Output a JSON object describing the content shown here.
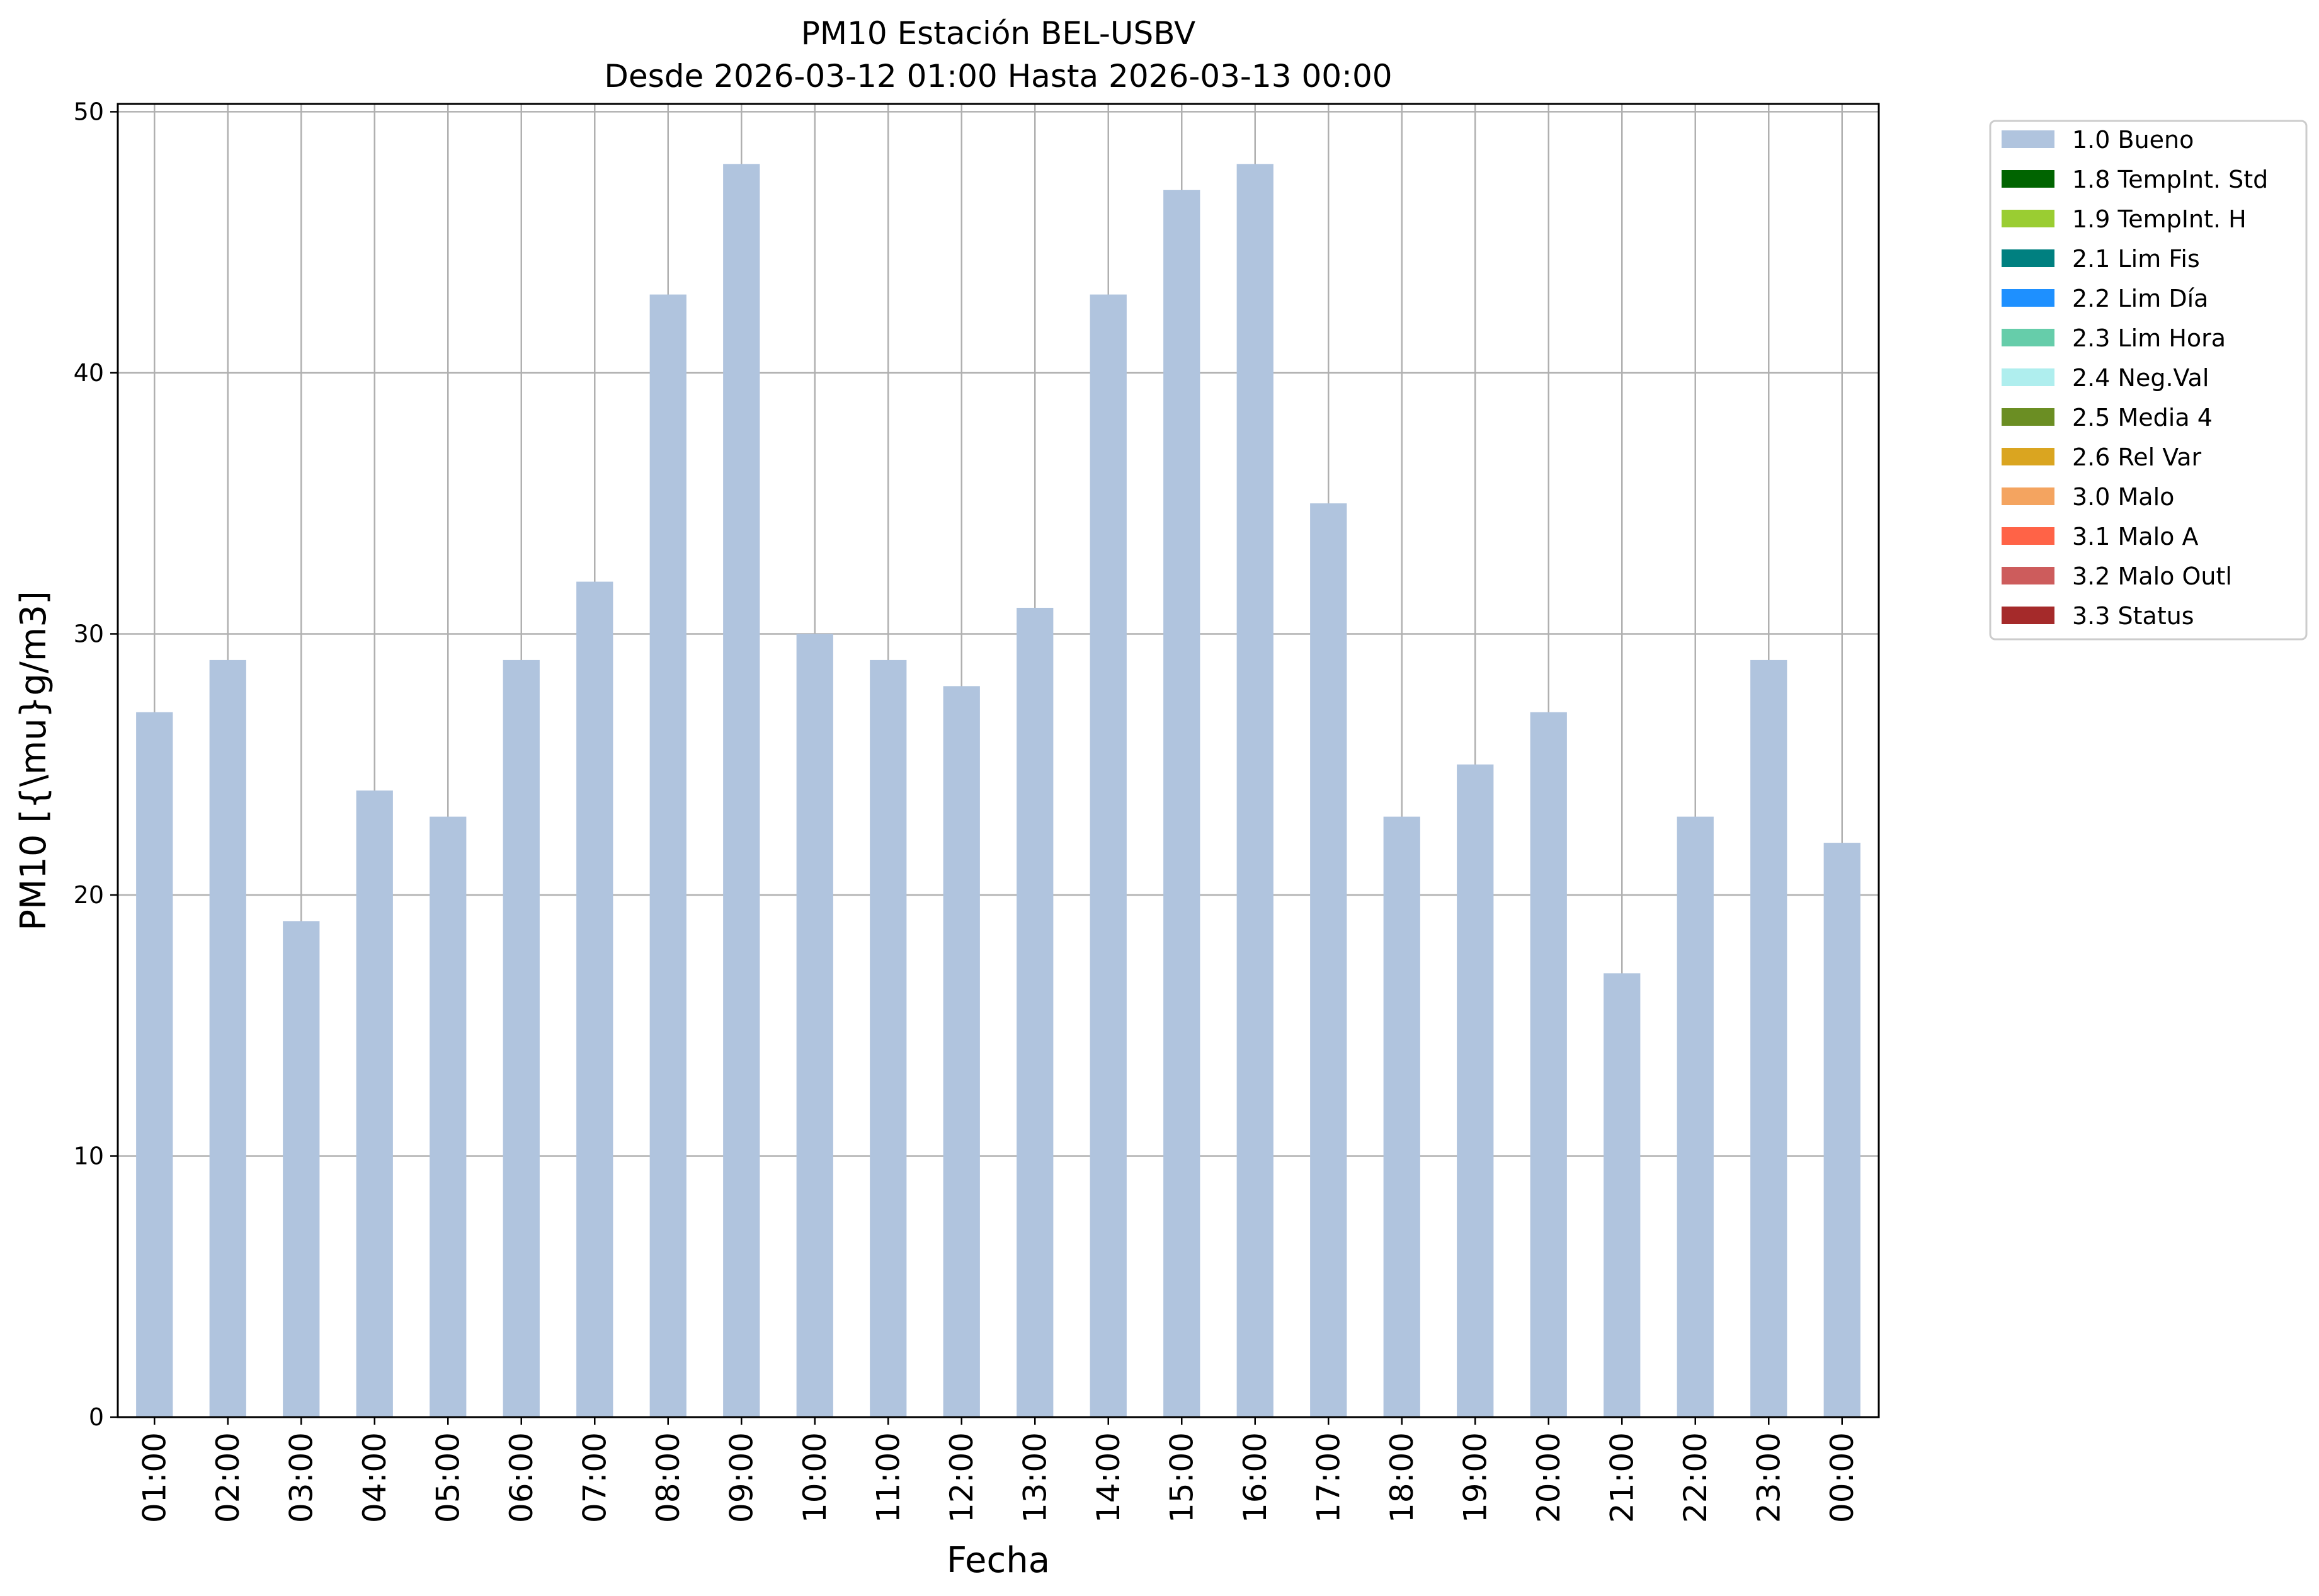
{
  "chart_data": {
    "type": "bar",
    "title": "PM10 Estación BEL-USBV",
    "subtitle": "Desde 2026-03-12 01:00 Hasta 2026-03-13 00:00",
    "xlabel": "Fecha",
    "ylabel": "PM10 [{\\mu}g/m3]",
    "ylim": [
      0,
      50.3
    ],
    "yticks": [
      0,
      10,
      20,
      30,
      40,
      50
    ],
    "grid": true,
    "legend_position": "outside-right",
    "categories": [
      "01:00",
      "02:00",
      "03:00",
      "04:00",
      "05:00",
      "06:00",
      "07:00",
      "08:00",
      "09:00",
      "10:00",
      "11:00",
      "12:00",
      "13:00",
      "14:00",
      "15:00",
      "16:00",
      "17:00",
      "18:00",
      "19:00",
      "20:00",
      "21:00",
      "22:00",
      "23:00",
      "00:00"
    ],
    "series": [
      {
        "name": "1.0 Bueno",
        "color": "#b0c4de",
        "values": [
          27,
          29,
          19,
          24,
          23,
          29,
          32,
          43,
          48,
          30,
          29,
          28,
          31,
          43,
          47,
          48,
          35,
          23,
          25,
          27,
          17,
          23,
          29,
          22
        ]
      }
    ],
    "legend": [
      {
        "label": "1.0 Bueno",
        "color": "#b0c4de"
      },
      {
        "label": "1.8 TempInt. Std",
        "color": "#006400"
      },
      {
        "label": "1.9 TempInt. H",
        "color": "#9acd32"
      },
      {
        "label": "2.1 Lim Fis",
        "color": "#008080"
      },
      {
        "label": "2.2 Lim Día",
        "color": "#1e90ff"
      },
      {
        "label": "2.3 Lim Hora",
        "color": "#66cdaa"
      },
      {
        "label": "2.4 Neg.Val",
        "color": "#afeeee"
      },
      {
        "label": "2.5 Media 4",
        "color": "#6b8e23"
      },
      {
        "label": "2.6 Rel Var",
        "color": "#daa520"
      },
      {
        "label": "3.0 Malo",
        "color": "#f4a460"
      },
      {
        "label": "3.1 Malo A",
        "color": "#ff6347"
      },
      {
        "label": "3.2 Malo Outl",
        "color": "#cd5c5c"
      },
      {
        "label": "3.3 Status",
        "color": "#a52a2a"
      }
    ]
  }
}
